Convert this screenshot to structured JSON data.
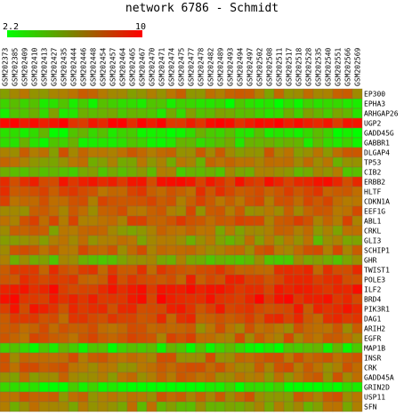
{
  "chart_data": {
    "type": "heatmap",
    "title": "network 6786 - Schmidt",
    "color_scale": {
      "min": 2.2,
      "max": 10,
      "min_label": "2.2",
      "max_label": "10",
      "low_color": "#00ff00",
      "high_color": "#ff0000"
    },
    "columns": [
      "GSM202373",
      "GSM202385",
      "GSM202409",
      "GSM202410",
      "GSM202413",
      "GSM202427",
      "GSM202435",
      "GSM202444",
      "GSM202446",
      "GSM202448",
      "GSM202454",
      "GSM202457",
      "GSM202464",
      "GSM202465",
      "GSM202467",
      "GSM202470",
      "GSM202471",
      "GSM202474",
      "GSM202475",
      "GSM202477",
      "GSM202478",
      "GSM202482",
      "GSM202489",
      "GSM202493",
      "GSM202494",
      "GSM202497",
      "GSM202502",
      "GSM202508",
      "GSM202511",
      "GSM202517",
      "GSM202518",
      "GSM202528",
      "GSM202535",
      "GSM202540",
      "GSM202551",
      "GSM202566",
      "GSM202569"
    ],
    "rows": [
      "EP300",
      "EPHA3",
      "ARHGAP26",
      "UGP2",
      "GADD45G",
      "GABBR1",
      "DLGAP4",
      "TP53",
      "CIB2",
      "ERBB2",
      "HLTF",
      "CDKN1A",
      "EEF1G",
      "ABL1",
      "CRKL",
      "GLI3",
      "SCHIP1",
      "GHR",
      "TWIST1",
      "POLE3",
      "ILF2",
      "BRD4",
      "PIK3R1",
      "DAG1",
      "ARIH2",
      "EGFR",
      "MAP1B",
      "INSR",
      "CRK",
      "GADD45A",
      "GRIN2D",
      "USP11",
      "SFN"
    ],
    "row_levels": [
      6.0,
      3.0,
      3.8,
      9.2,
      3.3,
      3.6,
      6.2,
      5.6,
      4.8,
      8.6,
      7.4,
      6.8,
      6.5,
      7.0,
      6.0,
      5.4,
      6.6,
      4.8,
      7.6,
      7.8,
      8.8,
      8.8,
      8.2,
      7.6,
      6.5,
      6.8,
      3.2,
      6.4,
      6.4,
      6.1,
      2.5,
      6.2,
      5.3
    ]
  }
}
